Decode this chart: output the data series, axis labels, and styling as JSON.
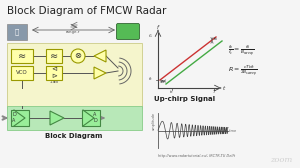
{
  "title": "Block Diagram of FMCW Radar",
  "slide_bg": "#f5f5f5",
  "yellow_bg": "#f5f5cc",
  "green_bg": "#b8e8b8",
  "url_text": "http://www.radartutorial.eu/, IRCTR-TU Delft",
  "block_diagram_label": "Block Diagram",
  "up_chirp_label": "Up-chirp Signal"
}
